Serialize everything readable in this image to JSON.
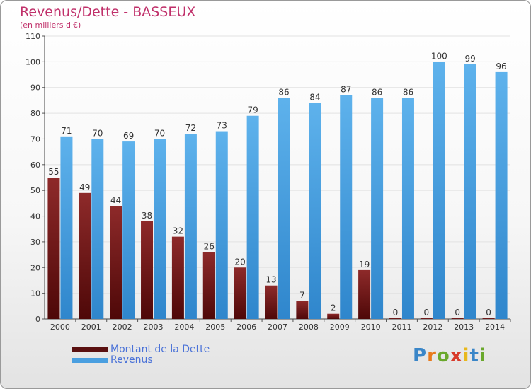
{
  "title": "Revenus/Dette - BASSEUX",
  "subtitle": "(en milliers d'€)",
  "chart_data": {
    "type": "bar",
    "categories": [
      "2000",
      "2001",
      "2002",
      "2003",
      "2004",
      "2005",
      "2006",
      "2007",
      "2008",
      "2009",
      "2010",
      "2011",
      "2012",
      "2013",
      "2014"
    ],
    "series": [
      {
        "name": "Montant de la Dette",
        "color": "#7a1818",
        "values": [
          55,
          49,
          44,
          38,
          32,
          26,
          20,
          13,
          7,
          2,
          19,
          0,
          0,
          0,
          0
        ]
      },
      {
        "name": "Revenus",
        "color": "#4a9fe0",
        "values": [
          71,
          70,
          69,
          70,
          72,
          73,
          79,
          86,
          84,
          87,
          86,
          86,
          100,
          99,
          96
        ]
      }
    ],
    "ylim": [
      0,
      110
    ],
    "yticks": [
      0,
      10,
      20,
      30,
      40,
      50,
      60,
      70,
      80,
      90,
      100,
      110
    ],
    "grid": true,
    "legend_position": "bottom-left"
  },
  "legend": [
    {
      "label": "Montant de la Dette",
      "color": "#5a1010"
    },
    {
      "label": "Revenus",
      "color": "#4a9fe0"
    }
  ],
  "logo": {
    "letters": [
      "P",
      "r",
      "o",
      "x",
      "i",
      "t",
      "i"
    ],
    "colors": [
      "#3a86c8",
      "#e87a1c",
      "#6aa82c",
      "#d83a2a",
      "#e8b81c",
      "#3a86c8",
      "#6aa82c"
    ]
  }
}
